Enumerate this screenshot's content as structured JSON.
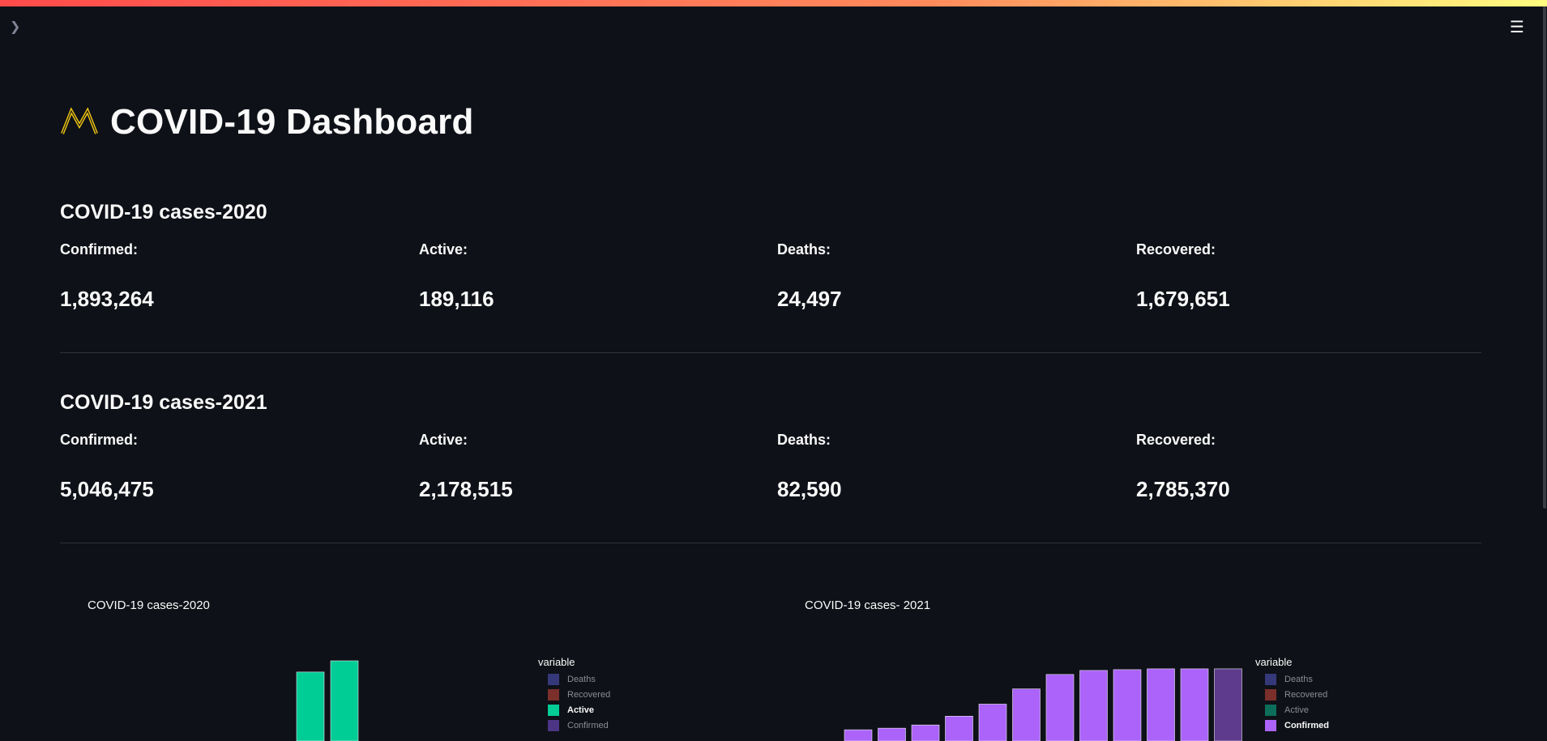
{
  "page": {
    "title": "COVID-19 Dashboard",
    "title_icon": "line-chart-icon",
    "accent_color": "#ff4b4b"
  },
  "toolbar": {
    "sidebar_toggle_icon": "chevron-right-icon",
    "menu_icon": "hamburger-menu-icon"
  },
  "sections": [
    {
      "heading": "COVID-19 cases-2020",
      "metrics": [
        {
          "label": "Confirmed:",
          "value": "1,893,264"
        },
        {
          "label": "Active:",
          "value": "189,116"
        },
        {
          "label": "Deaths:",
          "value": "24,497"
        },
        {
          "label": "Recovered:",
          "value": "1,679,651"
        }
      ]
    },
    {
      "heading": "COVID-19 cases-2021",
      "metrics": [
        {
          "label": "Confirmed:",
          "value": "5,046,475"
        },
        {
          "label": "Active:",
          "value": "2,178,515"
        },
        {
          "label": "Deaths:",
          "value": "82,590"
        },
        {
          "label": "Recovered:",
          "value": "2,785,370"
        }
      ]
    }
  ],
  "chart_data": [
    {
      "type": "bar",
      "title": "COVID-19 cases-2020",
      "legend_title": "variable",
      "legend": [
        {
          "name": "Deaths",
          "color": "#35397a",
          "highlighted": false
        },
        {
          "name": "Recovered",
          "color": "#7a2f2a",
          "highlighted": false
        },
        {
          "name": "Active",
          "color": "#00cc96",
          "highlighted": true
        },
        {
          "name": "Confirmed",
          "color": "#4b3584",
          "highlighted": false
        }
      ],
      "visible_series": "Active",
      "bars_visible": 2,
      "values": [
        0.86,
        1.0
      ],
      "value_note": "relative heights of visible bars (top portion only, chart clipped)"
    },
    {
      "type": "bar",
      "title": "COVID-19 cases- 2021",
      "legend_title": "variable",
      "legend": [
        {
          "name": "Deaths",
          "color": "#35397a",
          "highlighted": false
        },
        {
          "name": "Recovered",
          "color": "#7a2f2a",
          "highlighted": false
        },
        {
          "name": "Active",
          "color": "#0b6e5a",
          "highlighted": false
        },
        {
          "name": "Confirmed",
          "color": "#ab63fa",
          "highlighted": true
        }
      ],
      "visible_series": "Confirmed",
      "bars_visible": 12,
      "values": [
        0.14,
        0.16,
        0.2,
        0.31,
        0.46,
        0.65,
        0.83,
        0.88,
        0.89,
        0.9,
        0.9,
        0.9
      ],
      "last_bar_dimmed": true
    }
  ]
}
